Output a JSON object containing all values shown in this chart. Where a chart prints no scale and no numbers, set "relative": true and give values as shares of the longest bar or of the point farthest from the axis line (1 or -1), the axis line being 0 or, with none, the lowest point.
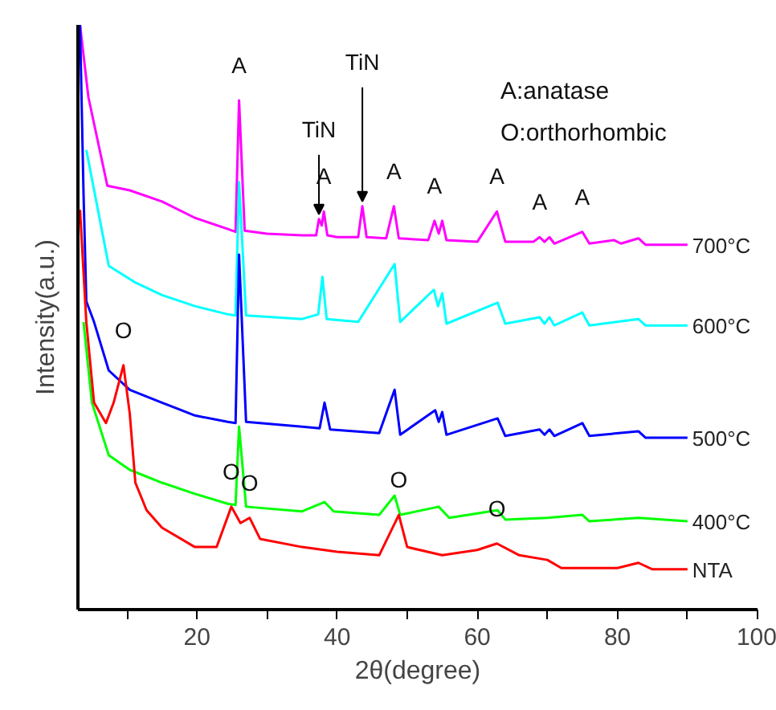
{
  "chart_data": {
    "type": "line",
    "relative": true,
    "xlabel": "2θ(degree)",
    "ylabel": "Intensity(a.u.)",
    "xlim": [
      3,
      100
    ],
    "xticks": [
      {
        "value": 10,
        "label": null
      },
      20,
      {
        "value": 30,
        "label": null
      },
      40,
      {
        "value": 50,
        "label": null
      },
      60,
      {
        "value": 70,
        "label": null
      },
      80,
      {
        "value": 90,
        "label": null
      },
      100
    ],
    "grid": false,
    "marker": "none",
    "line_style": "solid",
    "series": [
      {
        "name": "700°C",
        "color": "#ff00ff",
        "x": [
          3.3,
          4.5,
          7.2,
          10.4,
          15,
          19.7,
          24.4,
          25.5,
          26,
          26.8,
          30,
          35,
          37,
          37.4,
          37.8,
          38.1,
          38.6,
          40,
          43,
          43.6,
          44.2,
          47,
          48.1,
          48.8,
          53,
          53.9,
          54.5,
          55,
          55.6,
          60,
          62.8,
          64,
          68,
          68.9,
          69.6,
          70.3,
          71,
          75,
          76,
          79.5,
          80.5,
          83,
          84,
          90
        ],
        "values": [
          1.0,
          0.876,
          0.725,
          0.717,
          0.698,
          0.67,
          0.651,
          0.646,
          0.871,
          0.648,
          0.643,
          0.64,
          0.64,
          0.668,
          0.657,
          0.681,
          0.64,
          0.637,
          0.637,
          0.69,
          0.637,
          0.635,
          0.69,
          0.635,
          0.632,
          0.665,
          0.643,
          0.665,
          0.632,
          0.629,
          0.681,
          0.629,
          0.629,
          0.637,
          0.629,
          0.637,
          0.626,
          0.646,
          0.626,
          0.632,
          0.626,
          0.635,
          0.624,
          0.624
        ]
      },
      {
        "name": "600°C",
        "color": "#00ffff",
        "x": [
          4.2,
          7.4,
          11.1,
          15,
          19.7,
          24.4,
          25.5,
          26,
          27,
          35,
          37.3,
          37.9,
          38.5,
          43,
          48.2,
          49,
          53.8,
          54.4,
          55,
          55.6,
          62.9,
          64,
          68.9,
          69.6,
          70.3,
          71,
          75,
          76,
          83,
          84,
          90
        ],
        "values": [
          0.786,
          0.588,
          0.56,
          0.538,
          0.519,
          0.505,
          0.503,
          0.731,
          0.503,
          0.497,
          0.505,
          0.569,
          0.497,
          0.492,
          0.591,
          0.492,
          0.547,
          0.519,
          0.541,
          0.489,
          0.525,
          0.489,
          0.5,
          0.489,
          0.5,
          0.486,
          0.508,
          0.486,
          0.497,
          0.486,
          0.486
        ]
      },
      {
        "name": "500°C",
        "color": "#0000ff",
        "x": [
          3.3,
          3.8,
          4.2,
          5.3,
          7.4,
          10.4,
          15,
          19.7,
          24.4,
          25.5,
          26,
          27,
          35,
          37.5,
          38.2,
          39,
          46,
          48.2,
          49,
          54,
          54.5,
          55,
          55.6,
          62.9,
          64,
          68.9,
          69.6,
          70.3,
          71,
          75,
          76,
          83,
          84,
          90
        ],
        "values": [
          1.0,
          0.712,
          0.527,
          0.492,
          0.409,
          0.376,
          0.354,
          0.332,
          0.321,
          0.319,
          0.607,
          0.321,
          0.313,
          0.31,
          0.354,
          0.308,
          0.302,
          0.376,
          0.299,
          0.341,
          0.321,
          0.338,
          0.299,
          0.327,
          0.297,
          0.308,
          0.299,
          0.308,
          0.297,
          0.319,
          0.297,
          0.305,
          0.294,
          0.294
        ]
      },
      {
        "name": "400°C",
        "color": "#00ff00",
        "x": [
          3.8,
          5,
          7.4,
          10.4,
          15,
          19.7,
          24.4,
          25.5,
          26,
          27,
          35,
          38.2,
          39.5,
          46,
          48.2,
          49,
          54.5,
          56,
          62.9,
          64,
          70,
          75,
          76,
          83,
          90
        ],
        "values": [
          0.492,
          0.354,
          0.264,
          0.239,
          0.217,
          0.198,
          0.181,
          0.179,
          0.313,
          0.176,
          0.168,
          0.184,
          0.168,
          0.162,
          0.195,
          0.162,
          0.176,
          0.157,
          0.17,
          0.154,
          0.157,
          0.162,
          0.151,
          0.157,
          0.151
        ]
      },
      {
        "name": "NTA",
        "color": "#ff0000",
        "x": [
          3.3,
          4.2,
          5.3,
          7,
          8.1,
          9.5,
          10.4,
          11.2,
          12.8,
          15,
          19.7,
          22.8,
          24.9,
          26.2,
          27.5,
          29,
          35,
          40,
          46,
          48.8,
          50,
          55,
          60,
          62.8,
          66,
          70,
          72,
          80,
          83,
          85,
          90
        ],
        "values": [
          0.684,
          0.492,
          0.354,
          0.319,
          0.354,
          0.418,
          0.335,
          0.217,
          0.17,
          0.14,
          0.107,
          0.107,
          0.176,
          0.148,
          0.157,
          0.121,
          0.107,
          0.099,
          0.093,
          0.162,
          0.107,
          0.093,
          0.102,
          0.113,
          0.093,
          0.085,
          0.071,
          0.071,
          0.08,
          0.069,
          0.069
        ]
      }
    ],
    "annotations": [
      "A:anatase",
      "O:orthorhombic",
      {
        "text": "A",
        "x": 26,
        "y": 0.871
      },
      {
        "text": "A",
        "x": 38.1,
        "y": 0.681
      },
      {
        "text": "A",
        "x": 48.1,
        "y": 0.69
      },
      {
        "text": "A",
        "x": 53.9,
        "y": 0.665
      },
      {
        "text": "A",
        "x": 62.8,
        "y": 0.681
      },
      {
        "text": "A",
        "x": 68.9,
        "y": 0.637
      },
      {
        "text": "A",
        "x": 75,
        "y": 0.646
      },
      {
        "text": "TiN",
        "x": 37.4,
        "y": 0.668
      },
      {
        "text": "TiN",
        "x": 43.6,
        "y": 0.69
      },
      {
        "text": "O",
        "x": 9.5,
        "y": 0.418
      },
      {
        "text": "O",
        "x": 24.9,
        "y": 0.176
      },
      {
        "text": "O",
        "x": 27.5,
        "y": 0.157
      },
      {
        "text": "O",
        "x": 48.8,
        "y": 0.162
      },
      {
        "text": "O",
        "x": 62.8,
        "y": 0.113
      }
    ]
  }
}
